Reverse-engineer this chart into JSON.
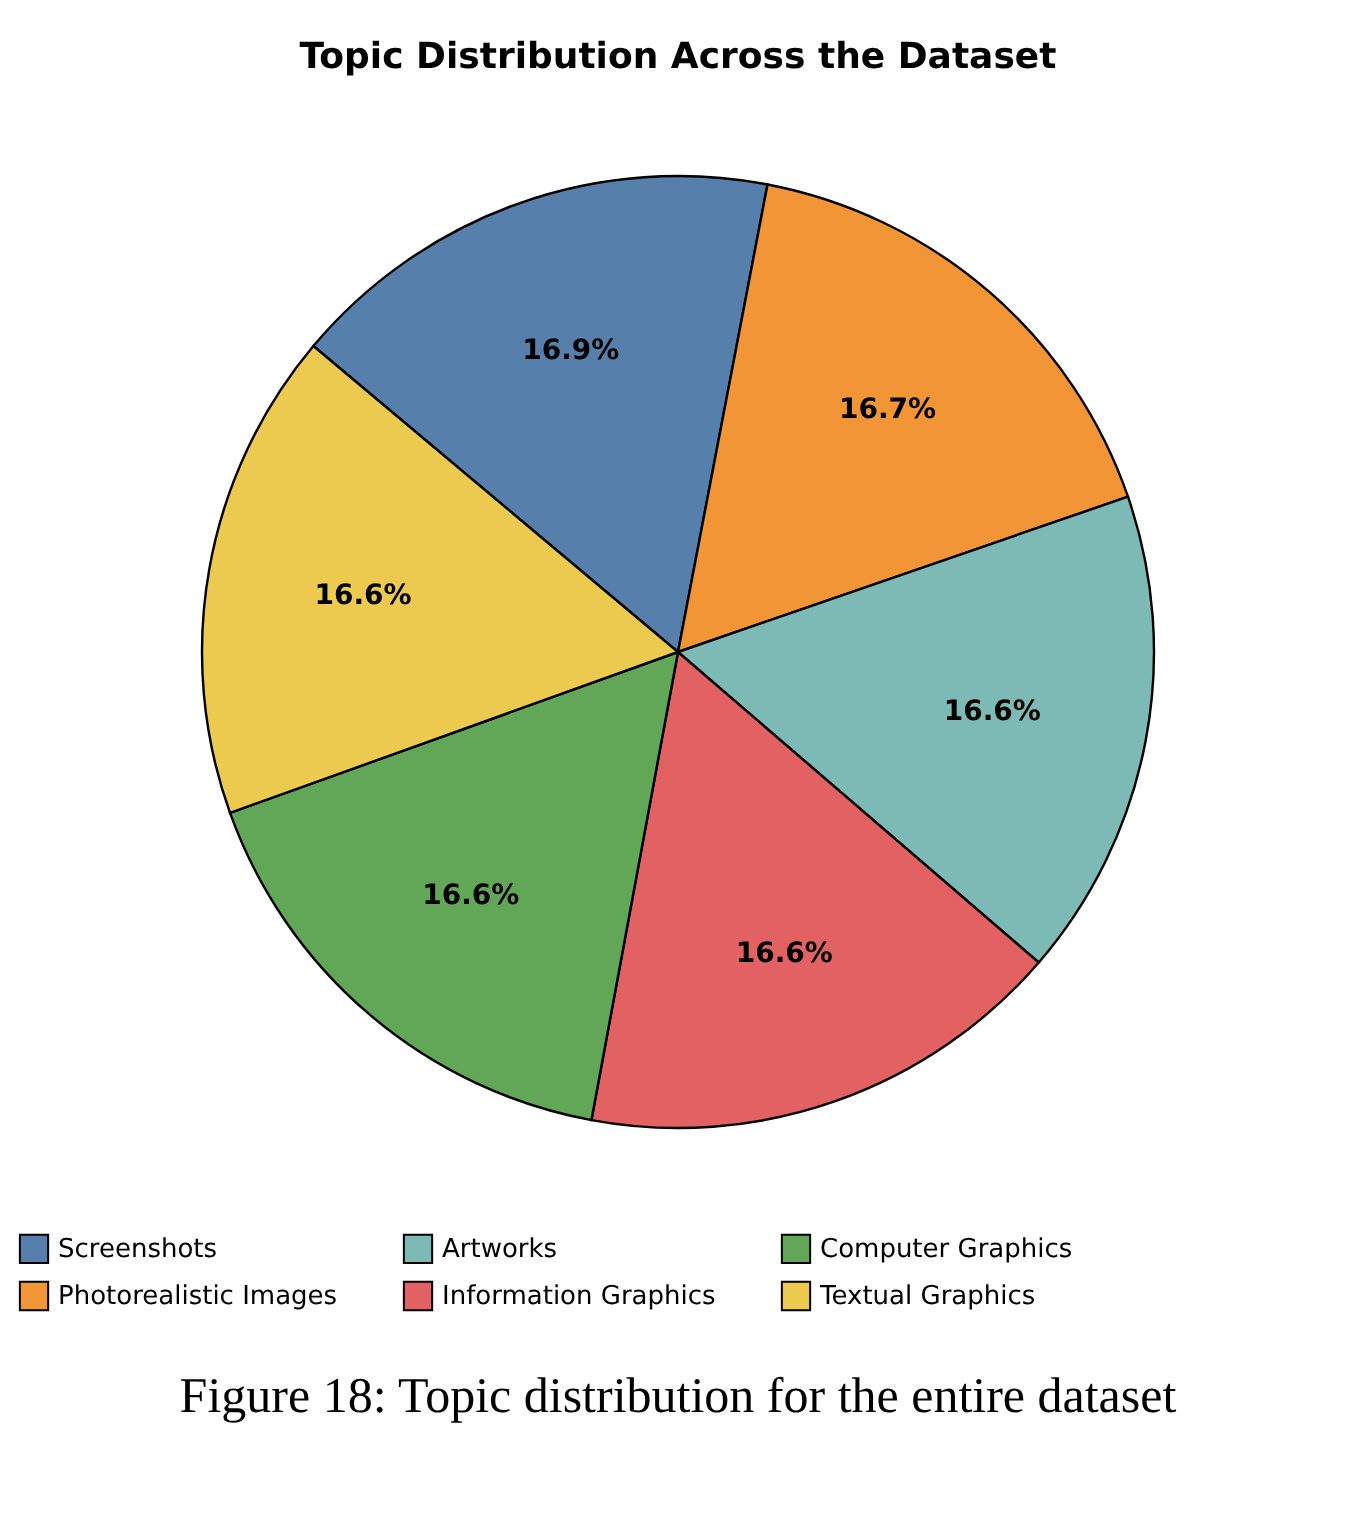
{
  "chart_data": {
    "type": "pie",
    "title": "Topic Distribution Across the Dataset",
    "categories": [
      "Screenshots",
      "Photorealistic Images",
      "Artworks",
      "Information Graphics",
      "Computer Graphics",
      "Textual Graphics"
    ],
    "values": [
      16.9,
      16.7,
      16.6,
      16.6,
      16.6,
      16.6
    ],
    "colors": [
      "#5680ab",
      "#f29536",
      "#7db9b5",
      "#e26163",
      "#62a757",
      "#ecc94f"
    ],
    "value_labels": [
      "16.9%",
      "16.7%",
      "16.6%",
      "16.6%",
      "16.6%",
      "16.6%"
    ],
    "legend": "bottom",
    "annotations": [
      "Figure 18: Topic distribution for the entire dataset"
    ]
  }
}
